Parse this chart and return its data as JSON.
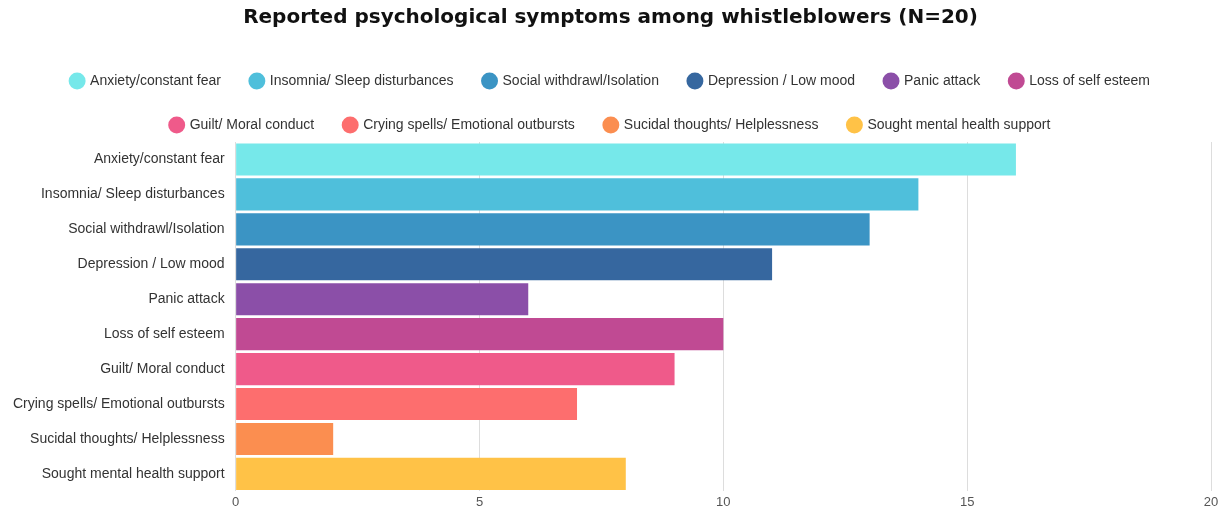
{
  "chart_data": {
    "type": "bar",
    "orientation": "horizontal",
    "title": "Reported psychological symptoms among whistleblowers (N=20)",
    "categories": [
      "Anxiety/constant fear",
      "Insomnia/ Sleep disturbances",
      "Social withdrawl/Isolation",
      "Depression / Low mood",
      "Panic attack",
      "Loss of self esteem",
      "Guilt/ Moral conduct",
      "Crying spells/ Emotional outbursts",
      "Sucidal thoughts/ Helplessness",
      "Sought mental health support"
    ],
    "series": [
      {
        "name": "Anxiety/constant fear",
        "color": "#76e8ea",
        "values": [
          16,
          null,
          null,
          null,
          null,
          null,
          null,
          null,
          null,
          null
        ]
      },
      {
        "name": "Insomnia/ Sleep disturbances",
        "color": "#4fbfdb",
        "values": [
          null,
          14,
          null,
          null,
          null,
          null,
          null,
          null,
          null,
          null
        ]
      },
      {
        "name": "Social withdrawl/Isolation",
        "color": "#3b94c4",
        "values": [
          null,
          null,
          13,
          null,
          null,
          null,
          null,
          null,
          null,
          null
        ]
      },
      {
        "name": "Depression / Low mood",
        "color": "#36679f",
        "values": [
          null,
          null,
          null,
          11,
          null,
          null,
          null,
          null,
          null,
          null
        ]
      },
      {
        "name": "Panic attack",
        "color": "#8b4fa8",
        "values": [
          null,
          null,
          null,
          null,
          6,
          null,
          null,
          null,
          null,
          null
        ]
      },
      {
        "name": "Loss of self esteem",
        "color": "#c04a93",
        "values": [
          null,
          null,
          null,
          null,
          null,
          10,
          null,
          null,
          null,
          null
        ]
      },
      {
        "name": "Guilt/ Moral conduct",
        "color": "#ef5a8a",
        "values": [
          null,
          null,
          null,
          null,
          null,
          null,
          9,
          null,
          null,
          null
        ]
      },
      {
        "name": "Crying spells/ Emotional outbursts",
        "color": "#fd6e6e",
        "values": [
          null,
          null,
          null,
          null,
          null,
          null,
          null,
          7,
          null,
          null
        ]
      },
      {
        "name": "Sucidal thoughts/ Helplessness",
        "color": "#fb8e50",
        "values": [
          null,
          null,
          null,
          null,
          null,
          null,
          null,
          null,
          2,
          null
        ]
      },
      {
        "name": "Sought mental health support",
        "color": "#ffc247",
        "values": [
          null,
          null,
          null,
          null,
          null,
          null,
          null,
          null,
          null,
          8
        ]
      }
    ],
    "xlim": [
      0,
      20
    ],
    "xticks": [
      0,
      5,
      10,
      15,
      20
    ],
    "grid": "x",
    "legend": "top"
  }
}
